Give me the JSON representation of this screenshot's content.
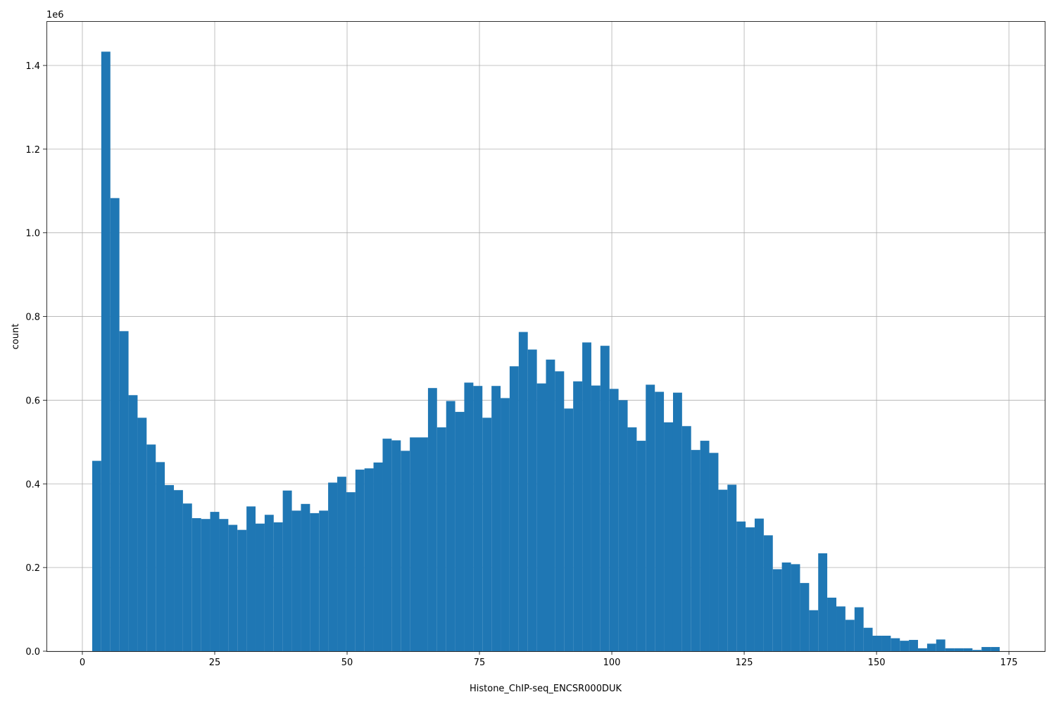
{
  "chart_data": {
    "type": "histogram",
    "x_label": "Histone_ChIP-seq_ENCSR000DUK",
    "y_label": "count",
    "y_offset_label": "1e6",
    "color": "#1f77b4",
    "grid": true,
    "bins": [
      1.86,
      3.57,
      5.29,
      7.0,
      8.72,
      10.43,
      12.14,
      13.86,
      15.57,
      17.29,
      19.0,
      20.71,
      22.43,
      24.14,
      25.86,
      27.57,
      29.28,
      31.0,
      32.71,
      34.43,
      36.14,
      37.85,
      39.57,
      41.28,
      43.0,
      44.71,
      46.42,
      48.14,
      49.85,
      51.57,
      53.28,
      54.99,
      56.71,
      58.42,
      60.14,
      61.85,
      63.56,
      65.28,
      66.99,
      68.71,
      70.42,
      72.13,
      73.85,
      75.56,
      77.28,
      78.99,
      80.7,
      82.42,
      84.13,
      85.85,
      87.56,
      89.27,
      90.99,
      92.7,
      94.42,
      96.13,
      97.84,
      99.56,
      101.27,
      102.99,
      104.7,
      106.41,
      108.13,
      109.84,
      111.56,
      113.27,
      114.98,
      116.7,
      118.41,
      120.13,
      121.84,
      123.55,
      125.27,
      126.98,
      128.7,
      130.41,
      132.12,
      133.84,
      135.55,
      137.27,
      138.98,
      140.69,
      142.41,
      144.12,
      145.84,
      147.55,
      149.26,
      150.98,
      152.69,
      154.41,
      156.12,
      157.83,
      159.55,
      161.26,
      162.98,
      164.69,
      166.4,
      168.12,
      169.83,
      171.55,
      173.26
    ],
    "values": [
      455000,
      1433000,
      1083000,
      765000,
      612000,
      558000,
      494000,
      452000,
      397000,
      385000,
      353000,
      318000,
      316000,
      333000,
      316000,
      302000,
      290000,
      346000,
      305000,
      326000,
      308000,
      384000,
      336000,
      352000,
      330000,
      336000,
      403000,
      417000,
      380000,
      434000,
      437000,
      451000,
      508000,
      504000,
      479000,
      511000,
      511000,
      629000,
      535000,
      598000,
      572000,
      642000,
      634000,
      558000,
      634000,
      605000,
      681000,
      763000,
      721000,
      640000,
      697000,
      669000,
      580000,
      645000,
      738000,
      635000,
      730000,
      627000,
      600000,
      535000,
      503000,
      637000,
      620000,
      547000,
      618000,
      538000,
      481000,
      503000,
      474000,
      386000,
      398000,
      310000,
      296000,
      317000,
      277000,
      196000,
      212000,
      208000,
      163000,
      98000,
      234000,
      128000,
      107000,
      75000,
      105000,
      56000,
      37000,
      37000,
      31000,
      25000,
      27000,
      7000,
      18000,
      28000,
      7000,
      7000,
      7000,
      3000,
      10000,
      10000
    ],
    "xlim": [
      -6.78,
      181.9
    ],
    "xticks": [
      0,
      25,
      50,
      75,
      100,
      125,
      150,
      175
    ],
    "ylim": [
      0,
      1506000
    ],
    "yticks": [
      {
        "value": 0,
        "label": "0.0"
      },
      {
        "value": 200000,
        "label": "0.2"
      },
      {
        "value": 400000,
        "label": "0.4"
      },
      {
        "value": 600000,
        "label": "0.6"
      },
      {
        "value": 800000,
        "label": "0.8"
      },
      {
        "value": 1000000,
        "label": "1.0"
      },
      {
        "value": 1200000,
        "label": "1.2"
      },
      {
        "value": 1400000,
        "label": "1.4"
      }
    ]
  }
}
